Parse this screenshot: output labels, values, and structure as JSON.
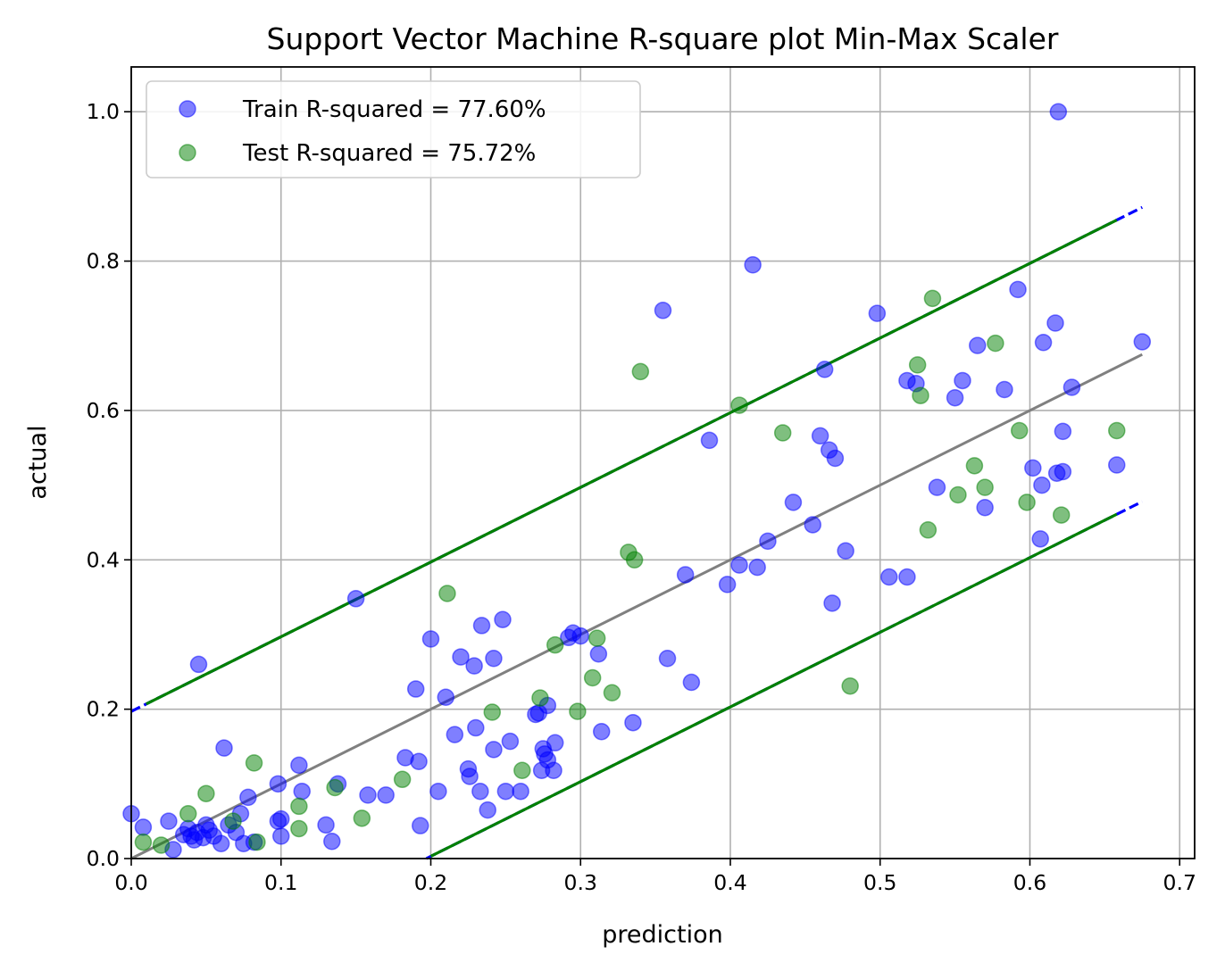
{
  "chart_data": {
    "type": "scatter",
    "title": "Support Vector Machine R-square plot Min-Max Scaler",
    "xlabel": "prediction",
    "ylabel": "actual",
    "xlim": [
      0.0,
      0.71
    ],
    "ylim": [
      0.0,
      1.06
    ],
    "xticks": [
      "0.0",
      "0.1",
      "0.2",
      "0.3",
      "0.4",
      "0.5",
      "0.6",
      "0.7"
    ],
    "xtick_values": [
      0.0,
      0.1,
      0.2,
      0.3,
      0.4,
      0.5,
      0.6,
      0.7
    ],
    "yticks": [
      "0.0",
      "0.2",
      "0.4",
      "0.6",
      "0.8",
      "1.0"
    ],
    "ytick_values": [
      0.0,
      0.2,
      0.4,
      0.6,
      0.8,
      1.0
    ],
    "grid": true,
    "legend_position": "top-left",
    "series": [
      {
        "name": "Train R-squared = 77.60%",
        "color": "#0000ff",
        "points": [
          [
            0.0,
            0.06
          ],
          [
            0.008,
            0.042
          ],
          [
            0.025,
            0.05
          ],
          [
            0.028,
            0.012
          ],
          [
            0.035,
            0.032
          ],
          [
            0.038,
            0.04
          ],
          [
            0.04,
            0.03
          ],
          [
            0.042,
            0.025
          ],
          [
            0.044,
            0.035
          ],
          [
            0.045,
            0.26
          ],
          [
            0.048,
            0.028
          ],
          [
            0.05,
            0.045
          ],
          [
            0.052,
            0.038
          ],
          [
            0.055,
            0.03
          ],
          [
            0.06,
            0.02
          ],
          [
            0.062,
            0.148
          ],
          [
            0.065,
            0.045
          ],
          [
            0.07,
            0.035
          ],
          [
            0.073,
            0.06
          ],
          [
            0.075,
            0.02
          ],
          [
            0.078,
            0.082
          ],
          [
            0.082,
            0.022
          ],
          [
            0.098,
            0.1
          ],
          [
            0.098,
            0.05
          ],
          [
            0.1,
            0.053
          ],
          [
            0.1,
            0.03
          ],
          [
            0.112,
            0.125
          ],
          [
            0.114,
            0.09
          ],
          [
            0.13,
            0.045
          ],
          [
            0.134,
            0.023
          ],
          [
            0.138,
            0.1
          ],
          [
            0.15,
            0.348
          ],
          [
            0.158,
            0.085
          ],
          [
            0.17,
            0.085
          ],
          [
            0.183,
            0.135
          ],
          [
            0.19,
            0.227
          ],
          [
            0.192,
            0.13
          ],
          [
            0.193,
            0.044
          ],
          [
            0.2,
            0.294
          ],
          [
            0.205,
            0.09
          ],
          [
            0.21,
            0.216
          ],
          [
            0.216,
            0.166
          ],
          [
            0.22,
            0.27
          ],
          [
            0.225,
            0.12
          ],
          [
            0.226,
            0.11
          ],
          [
            0.229,
            0.258
          ],
          [
            0.23,
            0.175
          ],
          [
            0.233,
            0.09
          ],
          [
            0.234,
            0.312
          ],
          [
            0.238,
            0.065
          ],
          [
            0.242,
            0.146
          ],
          [
            0.242,
            0.268
          ],
          [
            0.248,
            0.32
          ],
          [
            0.25,
            0.09
          ],
          [
            0.253,
            0.157
          ],
          [
            0.26,
            0.09
          ],
          [
            0.27,
            0.193
          ],
          [
            0.272,
            0.195
          ],
          [
            0.274,
            0.118
          ],
          [
            0.275,
            0.147
          ],
          [
            0.276,
            0.14
          ],
          [
            0.278,
            0.132
          ],
          [
            0.278,
            0.205
          ],
          [
            0.282,
            0.118
          ],
          [
            0.283,
            0.155
          ],
          [
            0.292,
            0.296
          ],
          [
            0.295,
            0.302
          ],
          [
            0.3,
            0.298
          ],
          [
            0.312,
            0.274
          ],
          [
            0.314,
            0.17
          ],
          [
            0.335,
            0.182
          ],
          [
            0.355,
            0.734
          ],
          [
            0.358,
            0.268
          ],
          [
            0.37,
            0.38
          ],
          [
            0.374,
            0.236
          ],
          [
            0.386,
            0.56
          ],
          [
            0.398,
            0.367
          ],
          [
            0.406,
            0.393
          ],
          [
            0.415,
            0.795
          ],
          [
            0.418,
            0.39
          ],
          [
            0.425,
            0.425
          ],
          [
            0.442,
            0.477
          ],
          [
            0.455,
            0.447
          ],
          [
            0.46,
            0.566
          ],
          [
            0.463,
            0.655
          ],
          [
            0.466,
            0.547
          ],
          [
            0.468,
            0.342
          ],
          [
            0.47,
            0.536
          ],
          [
            0.477,
            0.412
          ],
          [
            0.498,
            0.73
          ],
          [
            0.506,
            0.377
          ],
          [
            0.518,
            0.377
          ],
          [
            0.518,
            0.64
          ],
          [
            0.524,
            0.636
          ],
          [
            0.55,
            0.617
          ],
          [
            0.555,
            0.64
          ],
          [
            0.538,
            0.497
          ],
          [
            0.565,
            0.687
          ],
          [
            0.57,
            0.47
          ],
          [
            0.583,
            0.628
          ],
          [
            0.592,
            0.762
          ],
          [
            0.602,
            0.523
          ],
          [
            0.607,
            0.428
          ],
          [
            0.608,
            0.5
          ],
          [
            0.609,
            0.691
          ],
          [
            0.617,
            0.717
          ],
          [
            0.618,
            0.516
          ],
          [
            0.619,
            1.0
          ],
          [
            0.622,
            0.572
          ],
          [
            0.622,
            0.518
          ],
          [
            0.628,
            0.631
          ],
          [
            0.658,
            0.527
          ],
          [
            0.675,
            0.692
          ]
        ]
      },
      {
        "name": "Test R-squared = 75.72%",
        "color": "#008000",
        "points": [
          [
            0.008,
            0.022
          ],
          [
            0.02,
            0.018
          ],
          [
            0.038,
            0.06
          ],
          [
            0.05,
            0.087
          ],
          [
            0.068,
            0.05
          ],
          [
            0.082,
            0.128
          ],
          [
            0.084,
            0.022
          ],
          [
            0.112,
            0.07
          ],
          [
            0.112,
            0.04
          ],
          [
            0.136,
            0.095
          ],
          [
            0.154,
            0.054
          ],
          [
            0.181,
            0.106
          ],
          [
            0.211,
            0.355
          ],
          [
            0.241,
            0.196
          ],
          [
            0.261,
            0.118
          ],
          [
            0.273,
            0.215
          ],
          [
            0.283,
            0.286
          ],
          [
            0.298,
            0.197
          ],
          [
            0.308,
            0.242
          ],
          [
            0.311,
            0.295
          ],
          [
            0.321,
            0.222
          ],
          [
            0.332,
            0.41
          ],
          [
            0.336,
            0.4
          ],
          [
            0.34,
            0.652
          ],
          [
            0.406,
            0.607
          ],
          [
            0.435,
            0.57
          ],
          [
            0.48,
            0.231
          ],
          [
            0.525,
            0.661
          ],
          [
            0.527,
            0.62
          ],
          [
            0.532,
            0.44
          ],
          [
            0.535,
            0.75
          ],
          [
            0.552,
            0.487
          ],
          [
            0.563,
            0.526
          ],
          [
            0.57,
            0.497
          ],
          [
            0.577,
            0.69
          ],
          [
            0.593,
            0.573
          ],
          [
            0.598,
            0.477
          ],
          [
            0.621,
            0.46
          ],
          [
            0.658,
            0.573
          ]
        ]
      }
    ],
    "lines": [
      {
        "color": "#0000ff",
        "style": "dashed",
        "from": [
          0.0,
          0.197
        ],
        "to": [
          0.675,
          0.872
        ]
      },
      {
        "color": "#0000ff",
        "style": "dashed",
        "from": [
          0.197,
          0.0
        ],
        "to": [
          0.675,
          0.478
        ]
      },
      {
        "color": "#008000",
        "style": "solid",
        "from": [
          0.01,
          0.207
        ],
        "to": [
          0.658,
          0.855
        ]
      },
      {
        "color": "#008000",
        "style": "solid",
        "from": [
          0.2,
          0.003
        ],
        "to": [
          0.658,
          0.461
        ]
      },
      {
        "color": "#808080",
        "style": "solid",
        "from": [
          0.0,
          0.0
        ],
        "to": [
          0.675,
          0.675
        ]
      }
    ]
  }
}
